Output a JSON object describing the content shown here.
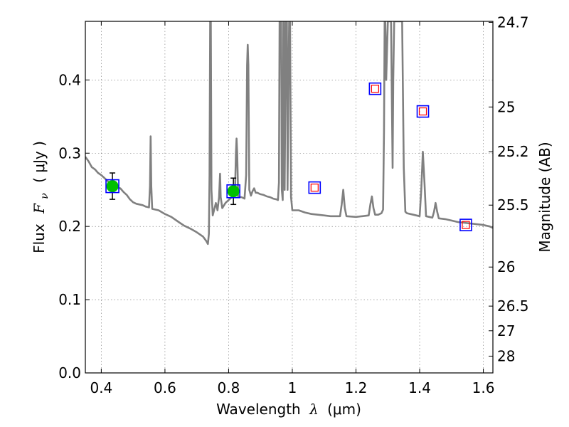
{
  "chart_data": {
    "type": "scatter",
    "xlabel_main": "Wavelength",
    "xlabel_sym": "λ",
    "xlabel_unit": "(μm)",
    "ylabel_main": "Flux",
    "ylabel_sym": "F",
    "ylabel_sub": "ν",
    "ylabel_unit": "( μJy )",
    "ylabel_right": "Magnitude (AB)",
    "xlim": [
      0.35,
      1.63
    ],
    "ylim": [
      0.0,
      0.48
    ],
    "grid": true,
    "x_ticks": [
      {
        "v": 0.4,
        "label": "0.4"
      },
      {
        "v": 0.6,
        "label": "0.6"
      },
      {
        "v": 0.8,
        "label": "0.8"
      },
      {
        "v": 1.0,
        "label": "1"
      },
      {
        "v": 1.2,
        "label": "1.2"
      },
      {
        "v": 1.4,
        "label": "1.4"
      },
      {
        "v": 1.6,
        "label": "1.6"
      }
    ],
    "y_ticks": [
      {
        "v": 0.0,
        "label": "0.0"
      },
      {
        "v": 0.1,
        "label": "0.1"
      },
      {
        "v": 0.2,
        "label": "0.2"
      },
      {
        "v": 0.3,
        "label": "0.3"
      },
      {
        "v": 0.4,
        "label": "0.4"
      }
    ],
    "right_ticks": [
      {
        "mag": 24.7,
        "label": "24.7"
      },
      {
        "mag": 25.0,
        "label": "25"
      },
      {
        "mag": 25.2,
        "label": "25.2"
      },
      {
        "mag": 25.5,
        "label": "25.5"
      },
      {
        "mag": 26.0,
        "label": "26"
      },
      {
        "mag": 26.5,
        "label": "26.5"
      },
      {
        "mag": 27.0,
        "label": "27"
      },
      {
        "mag": 28.0,
        "label": "28"
      }
    ],
    "series": [
      {
        "kind": "line",
        "color": "#808080",
        "points": [
          [
            0.35,
            0.295
          ],
          [
            0.36,
            0.289
          ],
          [
            0.37,
            0.281
          ],
          [
            0.38,
            0.278
          ],
          [
            0.39,
            0.273
          ],
          [
            0.4,
            0.27
          ],
          [
            0.41,
            0.266
          ],
          [
            0.42,
            0.262
          ],
          [
            0.43,
            0.258
          ],
          [
            0.44,
            0.255
          ],
          [
            0.45,
            0.253
          ],
          [
            0.46,
            0.252
          ],
          [
            0.47,
            0.247
          ],
          [
            0.48,
            0.243
          ],
          [
            0.49,
            0.237
          ],
          [
            0.5,
            0.233
          ],
          [
            0.51,
            0.231
          ],
          [
            0.52,
            0.23
          ],
          [
            0.53,
            0.229
          ],
          [
            0.54,
            0.227
          ],
          [
            0.55,
            0.226
          ],
          [
            0.553,
            0.255
          ],
          [
            0.555,
            0.323
          ],
          [
            0.557,
            0.255
          ],
          [
            0.56,
            0.224
          ],
          [
            0.58,
            0.222
          ],
          [
            0.6,
            0.217
          ],
          [
            0.62,
            0.213
          ],
          [
            0.64,
            0.207
          ],
          [
            0.66,
            0.201
          ],
          [
            0.68,
            0.197
          ],
          [
            0.7,
            0.192
          ],
          [
            0.72,
            0.186
          ],
          [
            0.73,
            0.18
          ],
          [
            0.735,
            0.176
          ],
          [
            0.738,
            0.19
          ],
          [
            0.74,
            0.27
          ],
          [
            0.742,
            0.48
          ],
          [
            0.744,
            0.48
          ],
          [
            0.746,
            0.25
          ],
          [
            0.75,
            0.215
          ],
          [
            0.76,
            0.232
          ],
          [
            0.765,
            0.222
          ],
          [
            0.77,
            0.24
          ],
          [
            0.773,
            0.272
          ],
          [
            0.775,
            0.24
          ],
          [
            0.78,
            0.225
          ],
          [
            0.79,
            0.232
          ],
          [
            0.8,
            0.236
          ],
          [
            0.81,
            0.24
          ],
          [
            0.82,
            0.245
          ],
          [
            0.823,
            0.3
          ],
          [
            0.825,
            0.32
          ],
          [
            0.827,
            0.3
          ],
          [
            0.83,
            0.24
          ],
          [
            0.84,
            0.24
          ],
          [
            0.85,
            0.238
          ],
          [
            0.855,
            0.27
          ],
          [
            0.858,
            0.42
          ],
          [
            0.86,
            0.448
          ],
          [
            0.862,
            0.42
          ],
          [
            0.865,
            0.25
          ],
          [
            0.87,
            0.242
          ],
          [
            0.875,
            0.248
          ],
          [
            0.88,
            0.252
          ],
          [
            0.885,
            0.246
          ],
          [
            0.89,
            0.246
          ],
          [
            0.9,
            0.244
          ],
          [
            0.91,
            0.243
          ],
          [
            0.92,
            0.241
          ],
          [
            0.93,
            0.24
          ],
          [
            0.94,
            0.238
          ],
          [
            0.95,
            0.237
          ],
          [
            0.955,
            0.236
          ],
          [
            0.958,
            0.26
          ],
          [
            0.96,
            0.48
          ],
          [
            0.962,
            0.48
          ],
          [
            0.965,
            0.48
          ],
          [
            0.967,
            0.25
          ],
          [
            0.97,
            0.236
          ],
          [
            0.972,
            0.48
          ],
          [
            0.974,
            0.48
          ],
          [
            0.976,
            0.25
          ],
          [
            0.98,
            0.48
          ],
          [
            0.983,
            0.48
          ],
          [
            0.985,
            0.25
          ],
          [
            0.99,
            0.48
          ],
          [
            0.993,
            0.48
          ],
          [
            0.996,
            0.24
          ],
          [
            1.0,
            0.222
          ],
          [
            1.02,
            0.222
          ],
          [
            1.04,
            0.219
          ],
          [
            1.06,
            0.217
          ],
          [
            1.08,
            0.216
          ],
          [
            1.1,
            0.215
          ],
          [
            1.12,
            0.214
          ],
          [
            1.14,
            0.214
          ],
          [
            1.15,
            0.214
          ],
          [
            1.155,
            0.23
          ],
          [
            1.16,
            0.25
          ],
          [
            1.165,
            0.225
          ],
          [
            1.17,
            0.214
          ],
          [
            1.2,
            0.213
          ],
          [
            1.22,
            0.214
          ],
          [
            1.24,
            0.215
          ],
          [
            1.245,
            0.23
          ],
          [
            1.25,
            0.241
          ],
          [
            1.255,
            0.225
          ],
          [
            1.26,
            0.216
          ],
          [
            1.27,
            0.216
          ],
          [
            1.28,
            0.218
          ],
          [
            1.285,
            0.223
          ],
          [
            1.288,
            0.33
          ],
          [
            1.29,
            0.48
          ],
          [
            1.292,
            0.48
          ],
          [
            1.295,
            0.4
          ],
          [
            1.3,
            0.48
          ],
          [
            1.305,
            0.48
          ],
          [
            1.31,
            0.48
          ],
          [
            1.313,
            0.36
          ],
          [
            1.315,
            0.28
          ],
          [
            1.317,
            0.4
          ],
          [
            1.32,
            0.48
          ],
          [
            1.325,
            0.48
          ],
          [
            1.33,
            0.48
          ],
          [
            1.335,
            0.48
          ],
          [
            1.34,
            0.48
          ],
          [
            1.345,
            0.48
          ],
          [
            1.35,
            0.28
          ],
          [
            1.355,
            0.22
          ],
          [
            1.36,
            0.218
          ],
          [
            1.38,
            0.216
          ],
          [
            1.4,
            0.214
          ],
          [
            1.405,
            0.25
          ],
          [
            1.41,
            0.302
          ],
          [
            1.415,
            0.26
          ],
          [
            1.42,
            0.214
          ],
          [
            1.44,
            0.212
          ],
          [
            1.445,
            0.22
          ],
          [
            1.45,
            0.232
          ],
          [
            1.455,
            0.22
          ],
          [
            1.46,
            0.211
          ],
          [
            1.48,
            0.21
          ],
          [
            1.5,
            0.208
          ],
          [
            1.52,
            0.206
          ],
          [
            1.54,
            0.205
          ],
          [
            1.56,
            0.204
          ],
          [
            1.58,
            0.203
          ],
          [
            1.6,
            0.202
          ],
          [
            1.62,
            0.2
          ],
          [
            1.63,
            0.198
          ]
        ]
      },
      {
        "kind": "observed",
        "name": "",
        "fill": "#00c000",
        "box": "#0000ff",
        "points": [
          {
            "x": 0.435,
            "y": 0.255,
            "err": 0.018
          },
          {
            "x": 0.815,
            "y": 0.248,
            "err": 0.018
          }
        ]
      },
      {
        "kind": "model",
        "name": "",
        "fill": "#ff0000",
        "box": "#0000ff",
        "points": [
          {
            "x": 1.07,
            "y": 0.253
          },
          {
            "x": 1.26,
            "y": 0.388
          },
          {
            "x": 1.41,
            "y": 0.357
          },
          {
            "x": 1.545,
            "y": 0.202
          }
        ]
      }
    ]
  }
}
